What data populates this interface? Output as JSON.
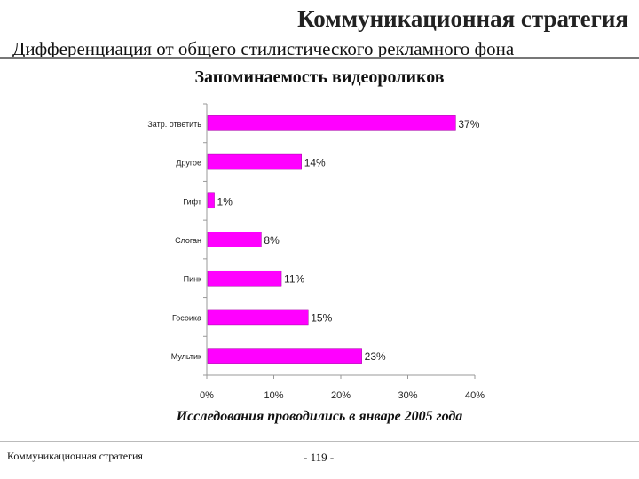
{
  "header": {
    "title": "Коммуникационная стратегия",
    "subtitle": "Дифференциация от общего стилистического рекламного фона"
  },
  "footer": {
    "left_text": "Коммуникационная стратегия",
    "page": "- 119 -"
  },
  "note": "Исследования проводились в январе 2005 года",
  "colors": {
    "bar": "#ff00ff",
    "axis": "#999999"
  },
  "chart_data": {
    "type": "bar",
    "orientation": "horizontal",
    "title": "Запоминаемость видеороликов",
    "categories": [
      "Затр. ответить",
      "Другое",
      "Гифт",
      "Слоган",
      "Пинк",
      "Госоика",
      "Мультик"
    ],
    "values": [
      37,
      14,
      1,
      8,
      11,
      15,
      23
    ],
    "value_labels": [
      "37%",
      "14%",
      "1%",
      "8%",
      "11%",
      "15%",
      "23%"
    ],
    "xlim": [
      0,
      40
    ],
    "x_ticks": [
      "0%",
      "10%",
      "20%",
      "30%",
      "40%"
    ],
    "xlabel": "",
    "ylabel": "",
    "grid": false,
    "legend": "none"
  }
}
